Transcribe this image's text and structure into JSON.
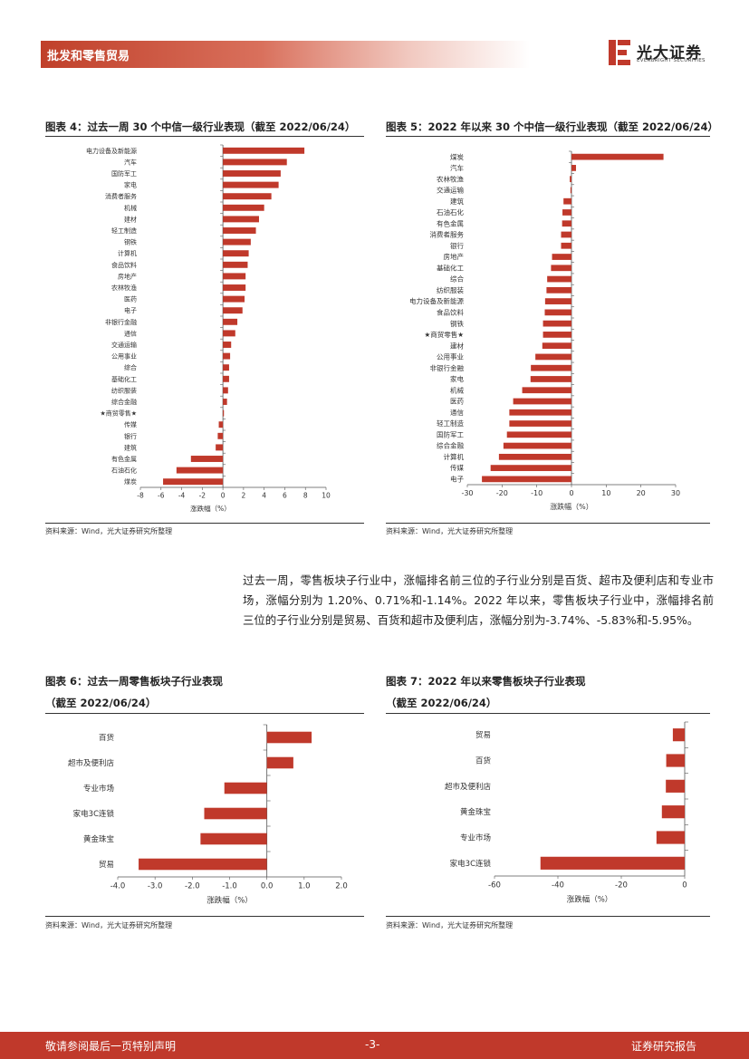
{
  "header": {
    "section": "批发和零售贸易",
    "logo_cn": "光大证券",
    "logo_en": "EVERBRIGHT SECURITIES"
  },
  "figures": {
    "fig4": {
      "title": "图表 4：过去一周 30 个中信一级行业表现（截至 2022/06/24）",
      "source": "资料来源：Wind，光大证券研究所整理"
    },
    "fig5": {
      "title": "图表 5：2022 年以来 30 个中信一级行业表现（截至 2022/06/24）",
      "source": "资料来源：Wind，光大证券研究所整理"
    },
    "fig6": {
      "title": "图表 6：过去一周零售板块子行业表现",
      "subtitle": "（截至 2022/06/24）",
      "source": "资料来源：Wind，光大证券研究所整理"
    },
    "fig7": {
      "title": "图表 7：2022 年以来零售板块子行业表现",
      "subtitle": "（截至 2022/06/24）",
      "source": "资料来源：Wind，光大证券研究所整理"
    }
  },
  "paragraph": "过去一周，零售板块子行业中，涨幅排名前三位的子行业分别是百货、超市及便利店和专业市场，涨幅分别为 1.20%、0.71%和-1.14%。2022 年以来，零售板块子行业中，涨幅排名前三位的子行业分别是贸易、百货和超市及便利店，涨幅分别为-3.74%、-5.83%和-5.95%。",
  "footer": {
    "left": "敬请参阅最后一页特别声明",
    "center": "-3-",
    "right": "证券研究报告"
  },
  "colors": {
    "bar": "#c0392b",
    "brand": "#c0392b"
  },
  "chart_data": [
    {
      "id": "fig4",
      "type": "bar",
      "orientation": "horizontal",
      "categories": [
        "电力设备及新能源",
        "汽车",
        "国防军工",
        "家电",
        "消费者服务",
        "机械",
        "建材",
        "轻工制造",
        "钢铁",
        "计算机",
        "食品饮料",
        "房地产",
        "农林牧渔",
        "医药",
        "电子",
        "非银行金融",
        "通信",
        "交通运输",
        "公用事业",
        "综合",
        "基础化工",
        "纺织服装",
        "综合金融",
        "★商贸零售★",
        "传媒",
        "银行",
        "建筑",
        "有色金属",
        "石油石化",
        "煤炭"
      ],
      "values": [
        7.9,
        6.2,
        5.6,
        5.4,
        4.7,
        4.0,
        3.5,
        3.2,
        2.7,
        2.5,
        2.4,
        2.2,
        2.2,
        2.1,
        1.9,
        1.4,
        1.2,
        0.8,
        0.7,
        0.6,
        0.6,
        0.5,
        0.4,
        0.1,
        -0.4,
        -0.5,
        -0.7,
        -3.1,
        -4.5,
        -5.8
      ],
      "xlim": [
        -8,
        10
      ],
      "xticks": [
        -8,
        -6,
        -4,
        -2,
        0,
        2,
        4,
        6,
        8,
        10
      ],
      "xlabel": "涨跌幅（%）"
    },
    {
      "id": "fig5",
      "type": "bar",
      "orientation": "horizontal",
      "categories": [
        "煤炭",
        "汽车",
        "农林牧渔",
        "交通运输",
        "建筑",
        "石油石化",
        "有色金属",
        "消费者服务",
        "银行",
        "房地产",
        "基础化工",
        "综合",
        "纺织服装",
        "电力设备及新能源",
        "食品饮料",
        "钢铁",
        "★商贸零售★",
        "建材",
        "公用事业",
        "非银行金融",
        "家电",
        "机械",
        "医药",
        "通信",
        "轻工制造",
        "国防军工",
        "综合金融",
        "计算机",
        "传媒",
        "电子"
      ],
      "values": [
        26.5,
        1.3,
        -0.5,
        -0.3,
        -2.3,
        -2.6,
        -2.7,
        -3.0,
        -3.0,
        -5.6,
        -5.9,
        -7.0,
        -7.2,
        -7.6,
        -7.7,
        -8.2,
        -8.2,
        -8.4,
        -10.4,
        -11.7,
        -11.8,
        -14.2,
        -16.8,
        -17.9,
        -17.9,
        -18.6,
        -19.6,
        -20.9,
        -23.3,
        -25.8
      ],
      "xlim": [
        -30,
        30
      ],
      "xticks": [
        -30,
        -20,
        -10,
        0,
        10,
        20,
        30
      ],
      "xlabel": "涨跌幅（%）"
    },
    {
      "id": "fig6",
      "type": "bar",
      "orientation": "horizontal",
      "categories": [
        "百货",
        "超市及便利店",
        "专业市场",
        "家电3C连锁",
        "黄金珠宝",
        "贸易"
      ],
      "values": [
        1.2,
        0.71,
        -1.14,
        -1.68,
        -1.78,
        -3.44
      ],
      "xlim": [
        -4.0,
        2.0
      ],
      "xticks": [
        -4.0,
        -3.0,
        -2.0,
        -1.0,
        0.0,
        1.0,
        2.0
      ],
      "xticklabels": [
        "-4.0",
        "-3.0",
        "-2.0",
        "-1.0",
        "0.0",
        "1.0",
        "2.0"
      ],
      "xlabel": "涨跌幅（%）"
    },
    {
      "id": "fig7",
      "type": "bar",
      "orientation": "horizontal",
      "categories": [
        "贸易",
        "百货",
        "超市及便利店",
        "黄金珠宝",
        "专业市场",
        "家电3C连锁"
      ],
      "values": [
        -3.74,
        -5.83,
        -5.95,
        -7.2,
        -8.9,
        -45.5
      ],
      "xlim": [
        -60,
        0
      ],
      "xticks": [
        -60,
        -40,
        -20,
        0
      ],
      "xlabel": "涨跌幅（%）"
    }
  ]
}
